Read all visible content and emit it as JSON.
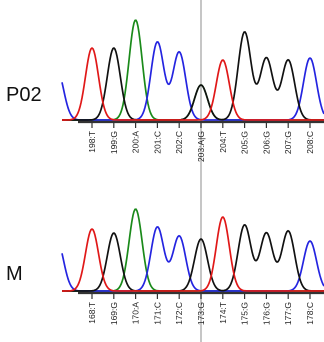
{
  "chart_data": [
    {
      "type": "line",
      "label": "P02",
      "ticks": [
        "198:T",
        "199:G",
        "200:A",
        "201:C",
        "202:C",
        "203:A|G",
        "204:T",
        "205:G",
        "206:G",
        "207:G",
        "208:C"
      ],
      "peaks": [
        {
          "base": "T",
          "height": 0.72
        },
        {
          "base": "G",
          "height": 0.72
        },
        {
          "base": "A",
          "height": 1.0
        },
        {
          "base": "C",
          "height": 0.78
        },
        {
          "base": "C",
          "height": 0.68
        },
        {
          "base": "A|G",
          "height": 0.35
        },
        {
          "base": "T",
          "height": 0.6
        },
        {
          "base": "G",
          "height": 0.88
        },
        {
          "base": "G",
          "height": 0.62
        },
        {
          "base": "G",
          "height": 0.6
        },
        {
          "base": "C",
          "height": 0.62
        }
      ],
      "highlighted_position": "203:A|G"
    },
    {
      "type": "line",
      "label": "M",
      "ticks": [
        "168:T",
        "169:G",
        "170:A",
        "171:C",
        "172:C",
        "173:G",
        "174:T",
        "175:G",
        "176:G",
        "177:G",
        "178:C"
      ],
      "peaks": [
        {
          "base": "T",
          "height": 0.62
        },
        {
          "base": "G",
          "height": 0.58
        },
        {
          "base": "A",
          "height": 0.82
        },
        {
          "base": "C",
          "height": 0.64
        },
        {
          "base": "C",
          "height": 0.55
        },
        {
          "base": "G",
          "height": 0.52
        },
        {
          "base": "T",
          "height": 0.74
        },
        {
          "base": "G",
          "height": 0.66
        },
        {
          "base": "G",
          "height": 0.58
        },
        {
          "base": "G",
          "height": 0.6
        },
        {
          "base": "C",
          "height": 0.5
        }
      ],
      "highlighted_position": "173:G"
    }
  ],
  "colors": {
    "A": "#1a8a1a",
    "C": "#2424e0",
    "G": "#111111",
    "T": "#e01818",
    "cursor": "#b8b8b8",
    "axis": "#333333"
  }
}
